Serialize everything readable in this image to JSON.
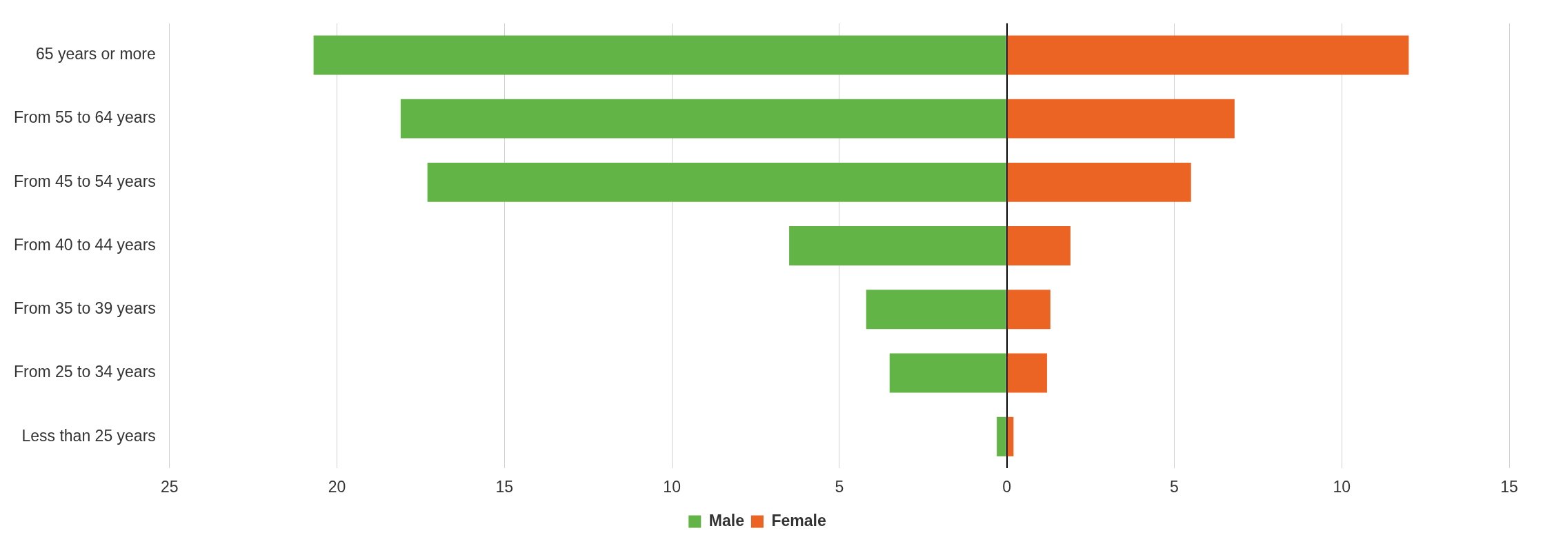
{
  "chart_data": {
    "type": "bar",
    "orientation": "horizontal",
    "stacked": true,
    "categories": [
      "65 years or more",
      "From 55 to 64 years",
      "From 45 to 54 years",
      "From 40 to 44 years",
      "From 35 to 39 years",
      "From 25 to 34 years",
      "Less than 25 years"
    ],
    "series": [
      {
        "name": "Male",
        "color": "#62b446",
        "values": [
          -20.7,
          -18.1,
          -17.3,
          -6.5,
          -4.2,
          -3.5,
          -0.3
        ]
      },
      {
        "name": "Female",
        "color": "#eb6424",
        "values": [
          12.0,
          6.8,
          5.5,
          1.9,
          1.3,
          1.2,
          0.2
        ]
      }
    ],
    "xlim": [
      -25,
      15
    ],
    "xticks": [
      {
        "value": -25,
        "label": "25"
      },
      {
        "value": -20,
        "label": "20"
      },
      {
        "value": -15,
        "label": "15"
      },
      {
        "value": -10,
        "label": "10"
      },
      {
        "value": -5,
        "label": "5"
      },
      0,
      5,
      10,
      15
    ],
    "grid": "x",
    "legend": "bottom"
  }
}
